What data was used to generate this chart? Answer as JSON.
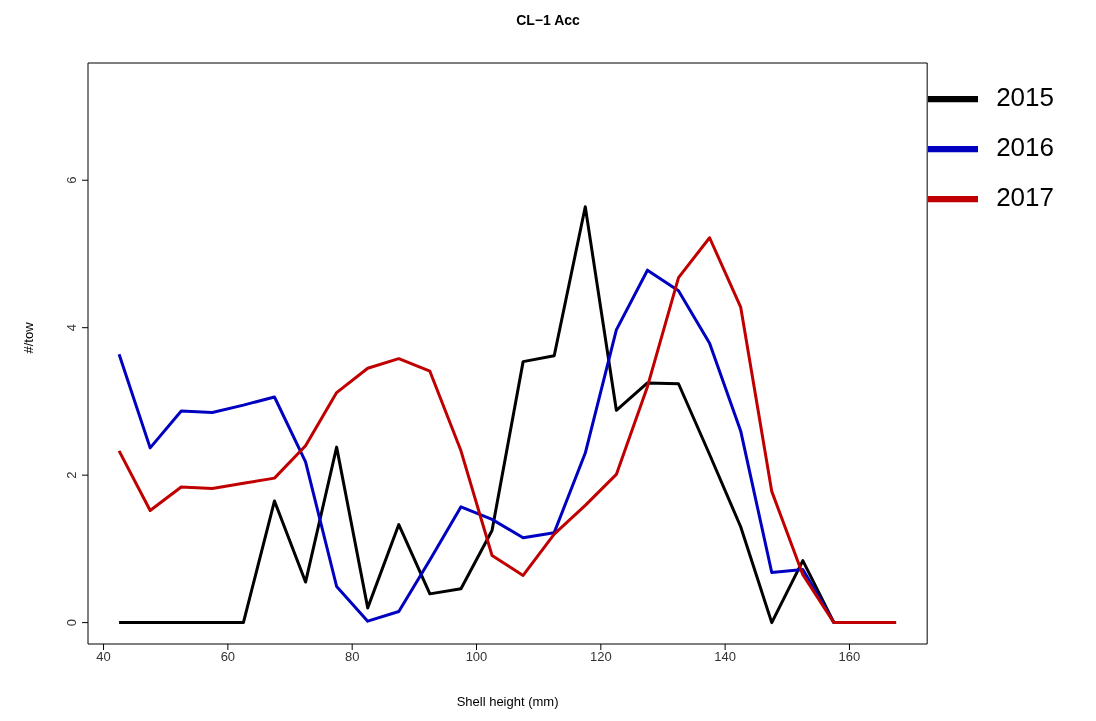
{
  "chart_data": {
    "type": "line",
    "title": "CL−1 Acc",
    "xlabel": "Shell height (mm)",
    "ylabel": "#/tow",
    "x": [
      42.5,
      47.5,
      52.5,
      57.5,
      62.5,
      67.5,
      72.5,
      77.5,
      82.5,
      87.5,
      92.5,
      97.5,
      102.5,
      107.5,
      112.5,
      117.5,
      122.5,
      127.5,
      132.5,
      137.5,
      142.5,
      147.5,
      152.5,
      157.5,
      162.5,
      167.5
    ],
    "series": [
      {
        "name": "2015",
        "color": "#000000",
        "values": [
          0,
          0,
          0,
          0,
          0,
          1.65,
          0.55,
          2.38,
          0.2,
          1.33,
          0.39,
          0.46,
          1.25,
          3.54,
          3.62,
          5.64,
          2.88,
          3.25,
          3.24,
          2.28,
          1.3,
          0,
          0.84,
          0,
          0,
          0
        ]
      },
      {
        "name": "2016",
        "color": "#0000c0",
        "values": [
          3.64,
          2.37,
          2.87,
          2.85,
          2.95,
          3.06,
          2.18,
          0.49,
          0.02,
          0.15,
          0.85,
          1.57,
          1.4,
          1.15,
          1.22,
          2.3,
          3.97,
          4.78,
          4.5,
          3.79,
          2.6,
          0.68,
          0.72,
          0,
          0,
          0
        ]
      },
      {
        "name": "2017",
        "color": "#c00000",
        "values": [
          2.33,
          1.52,
          1.84,
          1.82,
          1.89,
          1.96,
          2.4,
          3.12,
          3.45,
          3.58,
          3.41,
          2.33,
          0.91,
          0.64,
          1.2,
          1.59,
          2.01,
          3.2,
          4.68,
          5.22,
          4.28,
          1.78,
          0.65,
          0,
          0,
          0
        ]
      }
    ],
    "xlim": [
      37.5,
      172.5
    ],
    "xticks": [
      40,
      60,
      80,
      100,
      120,
      140,
      160
    ],
    "ylim": [
      -0.29,
      7.59
    ],
    "yticks": [
      0,
      2,
      4,
      6
    ],
    "grid": false,
    "legend": "top right",
    "marker": "none",
    "line_style": "solid"
  }
}
